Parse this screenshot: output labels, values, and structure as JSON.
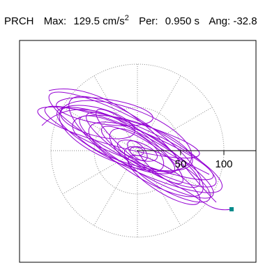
{
  "header": {
    "station": "PRCH",
    "max_label": "Max:",
    "max_value": "129.5",
    "max_unit": "cm/s",
    "max_unit_exp": "2",
    "per_label": "Per:",
    "per_value": "0.950",
    "per_unit": "s",
    "ang_label": "Ang:",
    "ang_value": "-32.8"
  },
  "axis": {
    "tick_labels": [
      "50",
      "100"
    ]
  },
  "colors": {
    "trace": "#9400d3",
    "endpoint": "#008b8b",
    "frame": "#000000",
    "grid": "#888888"
  }
}
